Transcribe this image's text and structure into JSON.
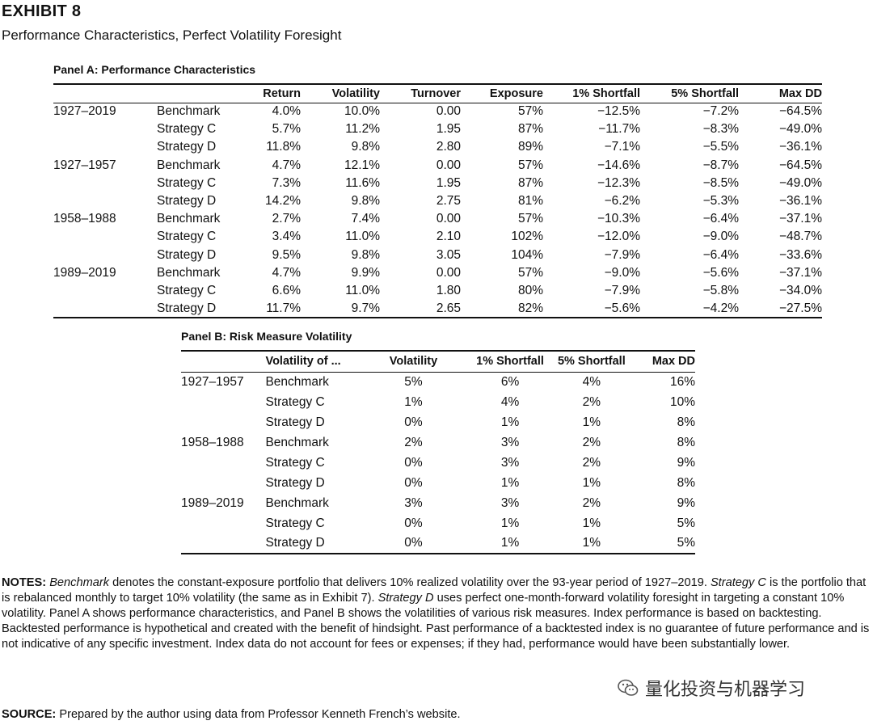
{
  "header": {
    "exhibit": "EXHIBIT 8",
    "subtitle": "Performance Characteristics, Perfect Volatility Foresight"
  },
  "panel_a": {
    "title": "Panel A: Performance Characteristics",
    "columns": [
      "Return",
      "Volatility",
      "Turnover",
      "Exposure",
      "1% Shortfall",
      "5% Shortfall",
      "Max DD"
    ],
    "groups": [
      {
        "period": "1927–2019",
        "rows": [
          {
            "label": "Benchmark",
            "values": [
              "4.0%",
              "10.0%",
              "0.00",
              "57%",
              "−12.5%",
              "−7.2%",
              "−64.5%"
            ]
          },
          {
            "label": "Strategy C",
            "values": [
              "5.7%",
              "11.2%",
              "1.95",
              "87%",
              "−11.7%",
              "−8.3%",
              "−49.0%"
            ]
          },
          {
            "label": "Strategy D",
            "values": [
              "11.8%",
              "9.8%",
              "2.80",
              "89%",
              "−7.1%",
              "−5.5%",
              "−36.1%"
            ]
          }
        ]
      },
      {
        "period": "1927–1957",
        "rows": [
          {
            "label": "Benchmark",
            "values": [
              "4.7%",
              "12.1%",
              "0.00",
              "57%",
              "−14.6%",
              "−8.7%",
              "−64.5%"
            ]
          },
          {
            "label": "Strategy C",
            "values": [
              "7.3%",
              "11.6%",
              "1.95",
              "87%",
              "−12.3%",
              "−8.5%",
              "−49.0%"
            ]
          },
          {
            "label": "Strategy D",
            "values": [
              "14.2%",
              "9.8%",
              "2.75",
              "81%",
              "−6.2%",
              "−5.3%",
              "−36.1%"
            ]
          }
        ]
      },
      {
        "period": "1958–1988",
        "rows": [
          {
            "label": "Benchmark",
            "values": [
              "2.7%",
              "7.4%",
              "0.00",
              "57%",
              "−10.3%",
              "−6.4%",
              "−37.1%"
            ]
          },
          {
            "label": "Strategy C",
            "values": [
              "3.4%",
              "11.0%",
              "2.10",
              "102%",
              "−12.0%",
              "−9.0%",
              "−48.7%"
            ]
          },
          {
            "label": "Strategy D",
            "values": [
              "9.5%",
              "9.8%",
              "3.05",
              "104%",
              "−7.9%",
              "−6.4%",
              "−33.6%"
            ]
          }
        ]
      },
      {
        "period": "1989–2019",
        "rows": [
          {
            "label": "Benchmark",
            "values": [
              "4.7%",
              "9.9%",
              "0.00",
              "57%",
              "−9.0%",
              "−5.6%",
              "−37.1%"
            ]
          },
          {
            "label": "Strategy C",
            "values": [
              "6.6%",
              "11.0%",
              "1.80",
              "80%",
              "−7.9%",
              "−5.8%",
              "−34.0%"
            ]
          },
          {
            "label": "Strategy D",
            "values": [
              "11.7%",
              "9.7%",
              "2.65",
              "82%",
              "−5.6%",
              "−4.2%",
              "−27.5%"
            ]
          }
        ]
      }
    ]
  },
  "panel_b": {
    "title": "Panel B: Risk Measure Volatility",
    "label_header": "Volatility of ...",
    "columns": [
      "Volatility",
      "1% Shortfall",
      "5% Shortfall",
      "Max DD"
    ],
    "groups": [
      {
        "period": "1927–1957",
        "rows": [
          {
            "label": "Benchmark",
            "values": [
              "5%",
              "6%",
              "4%",
              "16%"
            ]
          },
          {
            "label": "Strategy C",
            "values": [
              "1%",
              "4%",
              "2%",
              "10%"
            ]
          },
          {
            "label": "Strategy D",
            "values": [
              "0%",
              "1%",
              "1%",
              "8%"
            ]
          }
        ]
      },
      {
        "period": "1958–1988",
        "rows": [
          {
            "label": "Benchmark",
            "values": [
              "2%",
              "3%",
              "2%",
              "8%"
            ]
          },
          {
            "label": "Strategy C",
            "values": [
              "0%",
              "3%",
              "2%",
              "9%"
            ]
          },
          {
            "label": "Strategy D",
            "values": [
              "0%",
              "1%",
              "1%",
              "8%"
            ]
          }
        ]
      },
      {
        "period": "1989–2019",
        "rows": [
          {
            "label": "Benchmark",
            "values": [
              "3%",
              "3%",
              "2%",
              "9%"
            ]
          },
          {
            "label": "Strategy C",
            "values": [
              "0%",
              "1%",
              "1%",
              "5%"
            ]
          },
          {
            "label": "Strategy D",
            "values": [
              "0%",
              "1%",
              "1%",
              "5%"
            ]
          }
        ]
      }
    ]
  },
  "notes": {
    "label": "NOTES:",
    "t1_em": "Benchmark",
    "t2": " denotes the constant-exposure portfolio that delivers 10% realized volatility over the 93-year period of 1927–2019. ",
    "t3_em": "Strategy C",
    "t4": " is the portfolio that is rebalanced monthly to target 10% volatility (the same as in Exhibit 7). ",
    "t5_em": "Strategy D",
    "t6": " uses perfect one-month-forward volatility foresight in targeting a constant 10% volatility. Panel A shows performance characteristics, and Panel B shows the volatilities of various risk measures. Index performance is based on backtesting. Backtested performance is hypothetical and created with the benefit of hindsight. Past performance of a backtested index is no guarantee of future performance and is not indicative of any specific investment. Index data do not account for fees or expenses; if they had, performance would have been substantially lower."
  },
  "source": {
    "label": "SOURCE:",
    "text": " Prepared by the author using data from Professor Kenneth French’s website."
  },
  "watermark": {
    "icon": "wechat-icon",
    "text": "量化投资与机器学习"
  }
}
